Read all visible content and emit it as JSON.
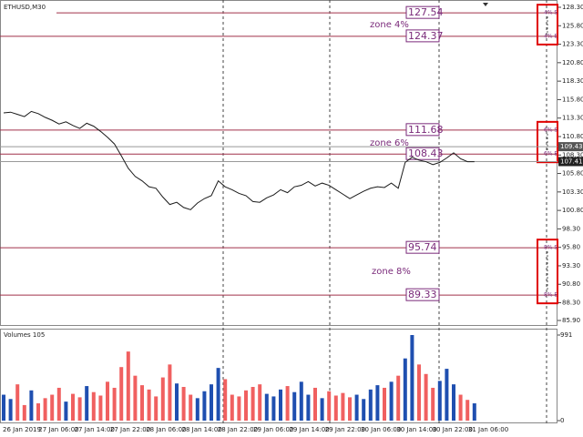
{
  "window_title": "ETHUSD,M30",
  "chart_data": [
    {
      "type": "line",
      "color": "#1a1a1a",
      "values": [
        114.0,
        114.1,
        113.8,
        113.5,
        114.2,
        113.9,
        113.4,
        113.0,
        112.5,
        112.8,
        112.3,
        111.9,
        112.6,
        112.2,
        111.5,
        110.7,
        109.8,
        108.2,
        106.5,
        105.4,
        104.8,
        104.0,
        103.8,
        102.6,
        101.6,
        101.9,
        101.2,
        100.9,
        101.8,
        102.4,
        102.8,
        104.8,
        104.0,
        103.6,
        103.1,
        102.8,
        102.0,
        101.9,
        102.5,
        102.9,
        103.6,
        103.2,
        104.0,
        104.2,
        104.7,
        104.1,
        104.5,
        104.2,
        103.6,
        103.0,
        102.4,
        102.9,
        103.4,
        103.8,
        104.0,
        103.9,
        104.5,
        103.8,
        107.3,
        108.0,
        107.6,
        107.4,
        107.0,
        107.3,
        107.9,
        108.6,
        107.8,
        107.4,
        107.4
      ],
      "ylim": [
        85.9,
        128.3
      ],
      "yticks": [
        {
          "value": 128.3,
          "label": "128.30"
        },
        {
          "value": 125.8,
          "label": "125.80"
        },
        {
          "value": 123.3,
          "label": "123.30"
        },
        {
          "value": 120.8,
          "label": "120.80"
        },
        {
          "value": 118.3,
          "label": "118.30"
        },
        {
          "value": 115.8,
          "label": "115.80"
        },
        {
          "value": 113.3,
          "label": "113.30"
        },
        {
          "value": 110.8,
          "label": "110.80"
        },
        {
          "value": 108.3,
          "label": "108.30"
        },
        {
          "value": 105.8,
          "label": "105.80"
        },
        {
          "value": 103.3,
          "label": "103.30"
        },
        {
          "value": 100.8,
          "label": "100.80"
        },
        {
          "value": 98.3,
          "label": "98.30"
        },
        {
          "value": 95.8,
          "label": "95.80"
        },
        {
          "value": 93.3,
          "label": "93.30"
        },
        {
          "value": 90.8,
          "label": "90.80"
        },
        {
          "value": 88.3,
          "label": "88.30"
        },
        {
          "value": 85.9,
          "label": "85.90"
        }
      ],
      "levels": [
        127.54,
        124.37,
        111.68,
        108.43,
        95.74,
        89.33
      ],
      "level_color": "#a0304a",
      "zones": [
        "zone 4%",
        "zone 6%",
        "zone 8%"
      ],
      "markers": [
        "4% S",
        "4% E",
        "6% S",
        "6% E",
        "8% S",
        "8% E"
      ],
      "prices": [
        109.43,
        107.41
      ],
      "x_labels": [
        "26 Jan 2019",
        "27 Jan 06:00",
        "27 Jan 14:00",
        "27 Jan 22:00",
        "28 Jan 06:00",
        "28 Jan 14:00",
        "28 Jan 22:00",
        "29 Jan 06:00",
        "29 Jan 14:00",
        "29 Jan 22:00",
        "30 Jan 06:00",
        "30 Jan 14:00",
        "30 Jan 22:00",
        "31 Jan 06:00"
      ]
    },
    {
      "type": "bar",
      "title": "Volumes 105",
      "up_color": "#1f4fb0",
      "down_color": "#f06060",
      "values": [
        300,
        250,
        420,
        180,
        350,
        200,
        260,
        300,
        380,
        220,
        310,
        270,
        400,
        330,
        290,
        450,
        380,
        620,
        800,
        520,
        410,
        360,
        280,
        500,
        650,
        430,
        390,
        300,
        260,
        340,
        420,
        610,
        480,
        300,
        280,
        350,
        390,
        420,
        310,
        280,
        360,
        400,
        330,
        450,
        300,
        380,
        260,
        340,
        290,
        320,
        270,
        300,
        250,
        360,
        410,
        380,
        450,
        520,
        720,
        991,
        650,
        540,
        380,
        460,
        600,
        420,
        300,
        240,
        200
      ],
      "ylim": [
        0,
        991
      ],
      "yticks": [
        991,
        0
      ]
    }
  ]
}
